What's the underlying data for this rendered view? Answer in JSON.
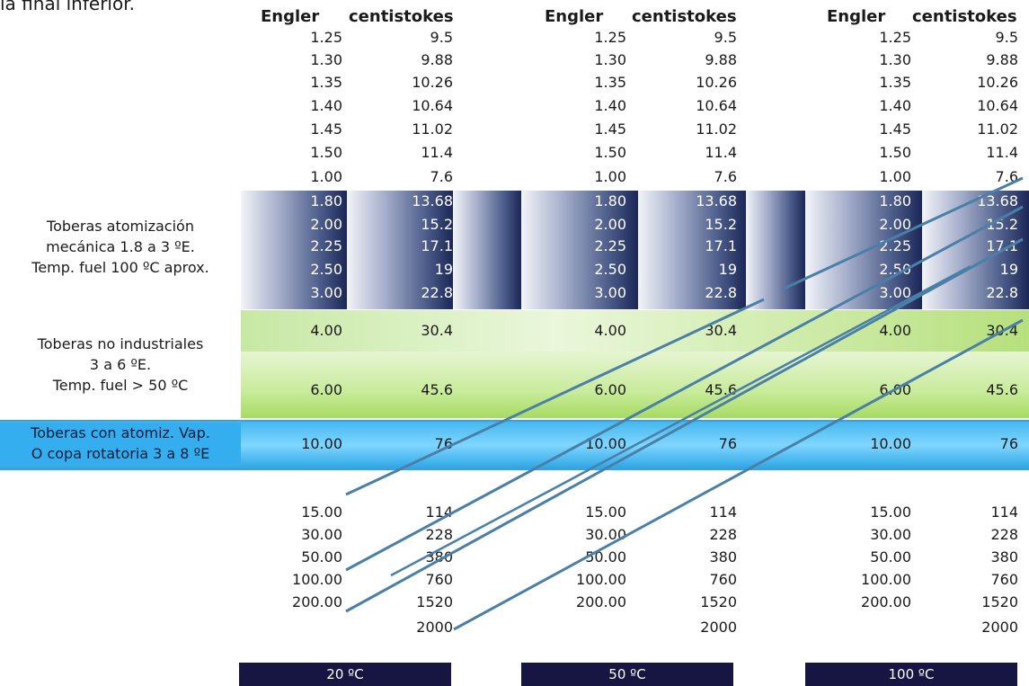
{
  "top_caption": "la final inferior.",
  "headers": {
    "engler": "Engler",
    "centistokes": "centistokes"
  },
  "table_rows": {
    "plain_top": [
      {
        "engler": "1.25",
        "cst": "9.5"
      },
      {
        "engler": "1.30",
        "cst": "9.88"
      },
      {
        "engler": "1.35",
        "cst": "10.26"
      },
      {
        "engler": "1.40",
        "cst": "10.64"
      },
      {
        "engler": "1.45",
        "cst": "11.02"
      },
      {
        "engler": "1.50",
        "cst": "11.4"
      },
      {
        "engler": "1.00",
        "cst": "7.6"
      }
    ],
    "blue": [
      {
        "engler": "1.80",
        "cst": "13.68"
      },
      {
        "engler": "2.00",
        "cst": "15.2"
      },
      {
        "engler": "2.25",
        "cst": "17.1"
      },
      {
        "engler": "2.50",
        "cst": "19"
      },
      {
        "engler": "3.00",
        "cst": "22.8"
      }
    ],
    "green": [
      {
        "engler": "4.00",
        "cst": "30.4"
      },
      {
        "engler": "6.00",
        "cst": "45.6"
      }
    ],
    "cyan": [
      {
        "engler": "10.00",
        "cst": "76"
      }
    ],
    "plain_bottom": [
      {
        "engler": "15.00",
        "cst": "114"
      },
      {
        "engler": "30.00",
        "cst": "228"
      },
      {
        "engler": "50.00",
        "cst": "380"
      },
      {
        "engler": "100.00",
        "cst": "760"
      },
      {
        "engler": "200.00",
        "cst": "1520"
      },
      {
        "engler": "",
        "cst": "2000"
      }
    ]
  },
  "labels": {
    "blue_l1": "Toberas atomización",
    "blue_l2": "mecánica 1.8 a 3 ºE.",
    "blue_l3": "Temp. fuel 100 ºC aprox.",
    "green_l1": "Toberas no industriales",
    "green_l2": "3 a 6 ºE.",
    "green_l3": "Temp. fuel  > 50 ºC",
    "cyan_l1": "Toberas con atomiz. Vap.",
    "cyan_l2": "O copa rotatoria 3 a 8 ºE"
  },
  "footer": [
    "20 ºC",
    "50 ºC",
    "100 ºC"
  ],
  "colors": {
    "dark_navy": "#171643",
    "connector_line": "#4a7fa8",
    "cyan_band": "#35aef0"
  }
}
